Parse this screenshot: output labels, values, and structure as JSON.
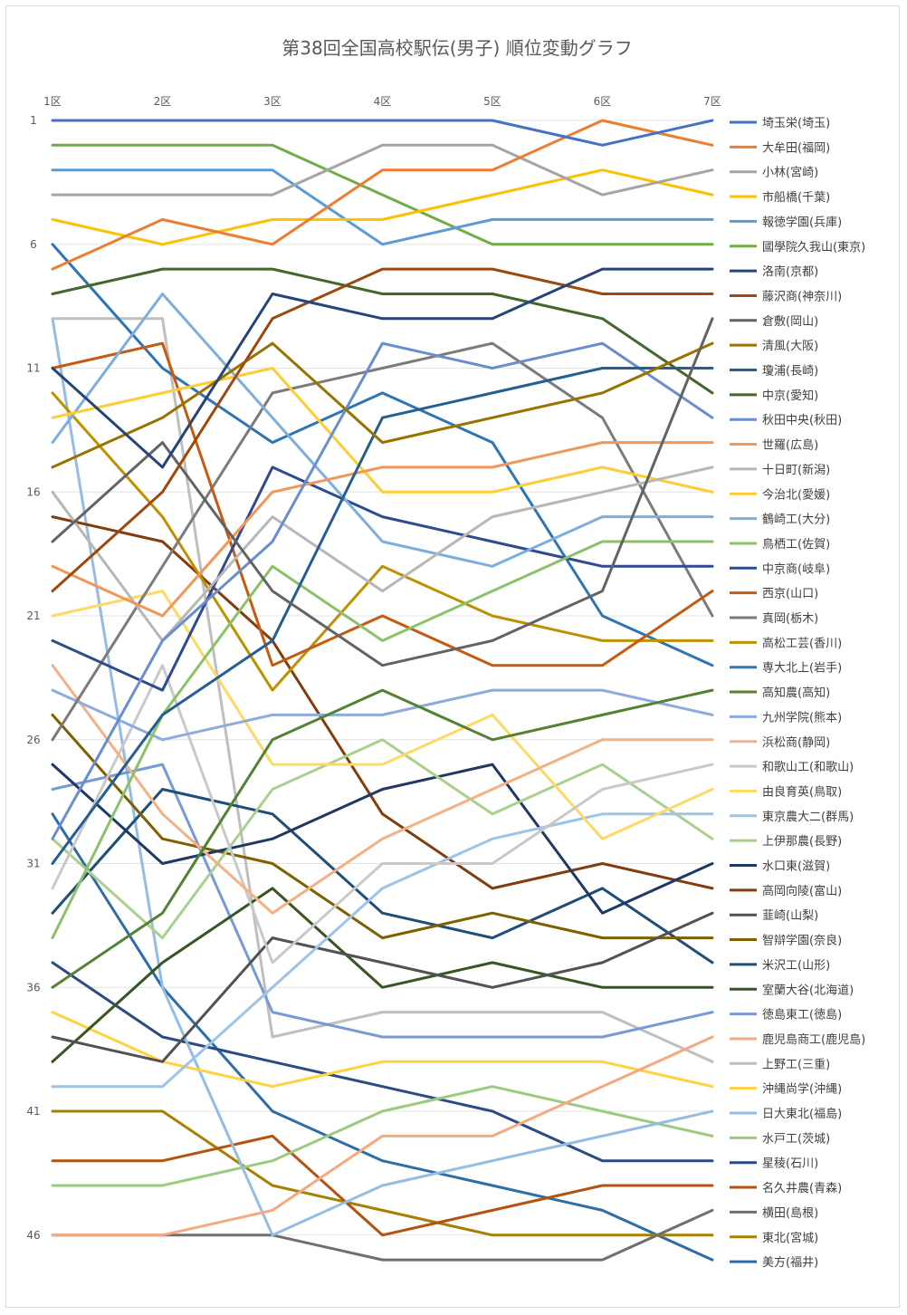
{
  "chart_data": {
    "type": "line",
    "title": "第38回全国高校駅伝(男子) 順位変動グラフ",
    "categories": [
      "1区",
      "2区",
      "3区",
      "4区",
      "5区",
      "6区",
      "7区"
    ],
    "y_ticks": [
      "1",
      "6",
      "11",
      "16",
      "21",
      "26",
      "31",
      "36",
      "41",
      "46"
    ],
    "y_reversed": true,
    "ylim": [
      1,
      47
    ],
    "grid": true,
    "legend_position": "right",
    "series": [
      {
        "name": "埼玉栄(埼玉)",
        "color": "#4472C4",
        "values": [
          1,
          1,
          1,
          1,
          1,
          2,
          1
        ]
      },
      {
        "name": "大牟田(福岡)",
        "color": "#ED7D31",
        "values": [
          7,
          5,
          6,
          3,
          3,
          1,
          2
        ]
      },
      {
        "name": "小林(宮崎)",
        "color": "#A5A5A5",
        "values": [
          4,
          4,
          4,
          2,
          2,
          4,
          3
        ]
      },
      {
        "name": "市船橋(千葉)",
        "color": "#FFC000",
        "values": [
          5,
          6,
          5,
          5,
          4,
          3,
          4
        ]
      },
      {
        "name": "報徳学園(兵庫)",
        "color": "#5B9BD5",
        "values": [
          3,
          3,
          3,
          6,
          5,
          5,
          5
        ]
      },
      {
        "name": "國學院久我山(東京)",
        "color": "#70AD47",
        "values": [
          2,
          2,
          2,
          4,
          6,
          6,
          6
        ]
      },
      {
        "name": "洛南(京都)",
        "color": "#264478",
        "values": [
          11,
          15,
          8,
          9,
          9,
          7,
          7
        ]
      },
      {
        "name": "藤沢商(神奈川)",
        "color": "#9E480E",
        "values": [
          20,
          16,
          9,
          7,
          7,
          8,
          8
        ]
      },
      {
        "name": "倉敷(岡山)",
        "color": "#636363",
        "values": [
          18,
          14,
          20,
          23,
          22,
          20,
          9
        ]
      },
      {
        "name": "清風(大阪)",
        "color": "#997300",
        "values": [
          15,
          13,
          10,
          14,
          13,
          12,
          10
        ]
      },
      {
        "name": "瓊浦(長崎)",
        "color": "#255E91",
        "values": [
          31,
          25,
          22,
          13,
          12,
          11,
          11
        ]
      },
      {
        "name": "中京(愛知)",
        "color": "#43682B",
        "values": [
          8,
          7,
          7,
          8,
          8,
          9,
          12
        ]
      },
      {
        "name": "秋田中央(秋田)",
        "color": "#698ED0",
        "values": [
          30,
          22,
          18,
          10,
          11,
          10,
          13
        ]
      },
      {
        "name": "世羅(広島)",
        "color": "#F1975A",
        "values": [
          19,
          21,
          16,
          15,
          15,
          14,
          14
        ]
      },
      {
        "name": "十日町(新潟)",
        "color": "#B7B7B7",
        "values": [
          16,
          22,
          17,
          20,
          17,
          16,
          15
        ]
      },
      {
        "name": "今治北(愛媛)",
        "color": "#FFCD33",
        "values": [
          13,
          12,
          11,
          16,
          16,
          15,
          16
        ]
      },
      {
        "name": "鶴崎工(大分)",
        "color": "#7CAFDD",
        "values": [
          14,
          8,
          13,
          18,
          19,
          17,
          17
        ]
      },
      {
        "name": "鳥栖工(佐賀)",
        "color": "#8CC168",
        "values": [
          34,
          25,
          19,
          22,
          20,
          18,
          18
        ]
      },
      {
        "name": "中京商(岐阜)",
        "color": "#2F4B8F",
        "values": [
          22,
          24,
          15,
          17,
          18,
          19,
          19
        ]
      },
      {
        "name": "西京(山口)",
        "color": "#C55A11",
        "values": [
          11,
          10,
          23,
          21,
          23,
          23,
          20
        ]
      },
      {
        "name": "真岡(栃木)",
        "color": "#7B7B7B",
        "values": [
          26,
          19,
          12,
          11,
          10,
          13,
          21
        ]
      },
      {
        "name": "高松工芸(香川)",
        "color": "#BF9000",
        "values": [
          12,
          17,
          24,
          19,
          21,
          22,
          22
        ]
      },
      {
        "name": "専大北上(岩手)",
        "color": "#2E75B6",
        "values": [
          6,
          11,
          14,
          12,
          14,
          21,
          23
        ]
      },
      {
        "name": "高知農(高知)",
        "color": "#548235",
        "values": [
          36,
          33,
          26,
          24,
          26,
          25,
          24
        ]
      },
      {
        "name": "九州学院(熊本)",
        "color": "#8FAADC",
        "values": [
          24,
          26,
          25,
          25,
          24,
          24,
          25
        ]
      },
      {
        "name": "浜松商(静岡)",
        "color": "#F4B183",
        "values": [
          23,
          29,
          33,
          30,
          28,
          26,
          26
        ]
      },
      {
        "name": "和歌山工(和歌山)",
        "color": "#C9C9C9",
        "values": [
          32,
          23,
          35,
          31,
          31,
          28,
          27
        ]
      },
      {
        "name": "由良育英(鳥取)",
        "color": "#FFD966",
        "values": [
          21,
          20,
          27,
          27,
          25,
          30,
          28
        ]
      },
      {
        "name": "東京農大二(群馬)",
        "color": "#9DC3E6",
        "values": [
          40,
          40,
          36,
          32,
          30,
          29,
          29
        ]
      },
      {
        "name": "上伊那農(長野)",
        "color": "#A9D18E",
        "values": [
          30,
          34,
          28,
          26,
          29,
          27,
          30
        ]
      },
      {
        "name": "水口東(滋賀)",
        "color": "#203864",
        "values": [
          27,
          31,
          30,
          28,
          27,
          33,
          31
        ]
      },
      {
        "name": "高岡向陵(富山)",
        "color": "#843C0C",
        "values": [
          17,
          18,
          22,
          29,
          32,
          31,
          32
        ]
      },
      {
        "name": "韮崎(山梨)",
        "color": "#525252",
        "values": [
          38,
          39,
          34,
          35,
          36,
          35,
          33
        ]
      },
      {
        "name": "智辯学園(奈良)",
        "color": "#7F6000",
        "values": [
          25,
          30,
          31,
          34,
          33,
          34,
          34
        ]
      },
      {
        "name": "米沢工(山形)",
        "color": "#1F4E79",
        "values": [
          33,
          28,
          29,
          33,
          34,
          32,
          35
        ]
      },
      {
        "name": "室蘭大谷(北海道)",
        "color": "#375623",
        "values": [
          39,
          35,
          32,
          36,
          35,
          36,
          36
        ]
      },
      {
        "name": "徳島東工(徳島)",
        "color": "#7899D5",
        "values": [
          28,
          27,
          37,
          38,
          38,
          38,
          37
        ]
      },
      {
        "name": "鹿児島商工(鹿児島)",
        "color": "#F4A97F",
        "values": [
          46,
          46,
          45,
          42,
          42,
          40,
          38
        ]
      },
      {
        "name": "上野工(三重)",
        "color": "#BFBFBF",
        "values": [
          9,
          9,
          38,
          37,
          37,
          37,
          39
        ]
      },
      {
        "name": "沖縄尚学(沖縄)",
        "color": "#FFD23F",
        "values": [
          37,
          39,
          40,
          39,
          39,
          39,
          40
        ]
      },
      {
        "name": "日大東北(福島)",
        "color": "#95BDE3",
        "values": [
          9,
          36,
          46,
          44,
          43,
          42,
          41
        ]
      },
      {
        "name": "水戸工(茨城)",
        "color": "#9BCB7D",
        "values": [
          44,
          44,
          43,
          41,
          40,
          41,
          42
        ]
      },
      {
        "name": "星稜(石川)",
        "color": "#2C4A84",
        "values": [
          35,
          38,
          39,
          40,
          41,
          43,
          43
        ]
      },
      {
        "name": "名久井農(青森)",
        "color": "#B5520F",
        "values": [
          43,
          43,
          42,
          46,
          45,
          44,
          44
        ]
      },
      {
        "name": "横田(島根)",
        "color": "#6F6F6F",
        "values": [
          46,
          46,
          46,
          47,
          47,
          47,
          45
        ]
      },
      {
        "name": "東北(宮城)",
        "color": "#A68000",
        "values": [
          41,
          41,
          44,
          45,
          46,
          46,
          46
        ]
      },
      {
        "name": "美方(福井)",
        "color": "#2D6DA8",
        "values": [
          29,
          36,
          41,
          43,
          44,
          45,
          47
        ]
      }
    ]
  }
}
